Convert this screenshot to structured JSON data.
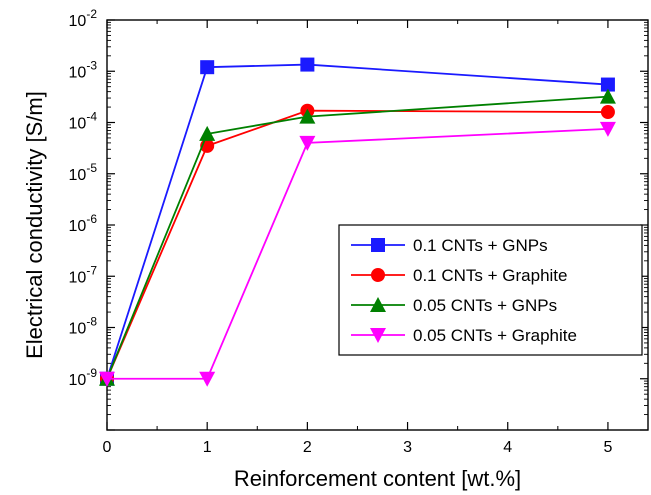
{
  "chart_data": {
    "type": "line",
    "title": "",
    "xlabel": "Reinforcement content [wt.%]",
    "ylabel": "Electrical conductivity [S/m]",
    "xlim": [
      0,
      5.4
    ],
    "ylim_log10": [
      -10,
      -2
    ],
    "y_scale": "log",
    "x_ticks": [
      0,
      1,
      2,
      3,
      4,
      5
    ],
    "x_tick_labels": [
      "0",
      "1",
      "2",
      "3",
      "4",
      "5"
    ],
    "y_tick_exponents": [
      -10,
      -9,
      -8,
      -7,
      -6,
      -5,
      -4,
      -3,
      -2
    ],
    "y_tick_labels": [
      {
        "base": "10",
        "exp": "-2"
      },
      {
        "base": "10",
        "exp": "-3"
      },
      {
        "base": "10",
        "exp": "-4"
      },
      {
        "base": "10",
        "exp": "-5"
      },
      {
        "base": "10",
        "exp": "-6"
      },
      {
        "base": "10",
        "exp": "-7"
      },
      {
        "base": "10",
        "exp": "-8"
      },
      {
        "base": "10",
        "exp": "-9"
      }
    ],
    "grid": false,
    "legend_position": "lower-right",
    "series": [
      {
        "name": "0.1 CNTs + GNPs",
        "color": "#1a1aff",
        "marker": "square",
        "x": [
          0,
          1,
          2,
          5
        ],
        "y": [
          1e-09,
          0.0012,
          0.00135,
          0.00055
        ]
      },
      {
        "name": "0.1 CNTs + Graphite",
        "color": "#ff0000",
        "marker": "circle",
        "x": [
          0,
          1,
          2,
          5
        ],
        "y": [
          1e-09,
          3.5e-05,
          0.00017,
          0.00016
        ]
      },
      {
        "name": "0.05 CNTs + GNPs",
        "color": "#008000",
        "marker": "triangle-up",
        "x": [
          0,
          1,
          2,
          5
        ],
        "y": [
          1e-09,
          6e-05,
          0.00013,
          0.00032
        ]
      },
      {
        "name": "0.05 CNTs + Graphite",
        "color": "#ff00ff",
        "marker": "triangle-down",
        "x": [
          0,
          1,
          2,
          5
        ],
        "y": [
          1e-09,
          1e-09,
          4e-05,
          7.5e-05
        ]
      }
    ]
  }
}
